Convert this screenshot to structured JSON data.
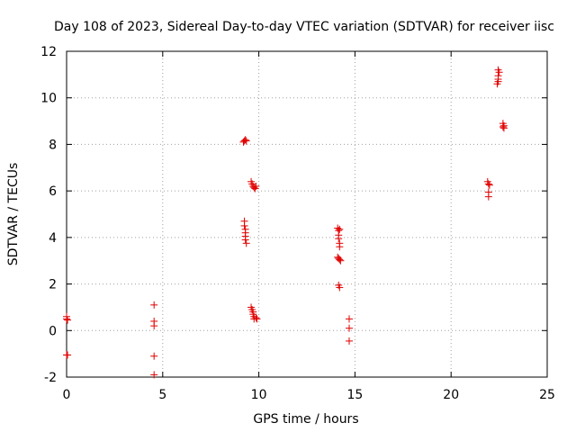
{
  "chart_data": {
    "type": "scatter",
    "title": "Day 108 of 2023, Sidereal Day-to-day VTEC variation (SDTVAR) for receiver iisc",
    "xlabel": "GPS time / hours",
    "ylabel": "SDTVAR / TECUs",
    "xlim": [
      0,
      25
    ],
    "ylim": [
      -2,
      12
    ],
    "grid": true,
    "xticks": [
      0,
      5,
      10,
      15,
      20,
      25
    ],
    "yticks": [
      -2,
      0,
      2,
      4,
      6,
      8,
      10,
      12
    ],
    "x_tick_labels": [
      "0",
      "5",
      "10",
      "15",
      "20",
      "25"
    ],
    "y_tick_labels": [
      "-2",
      "0",
      "2",
      "4",
      "6",
      "8",
      "10",
      "12"
    ],
    "marker": "+",
    "color": "#e00000",
    "series": [
      {
        "name": "SDTVAR",
        "points": [
          [
            0.0,
            0.6
          ],
          [
            0.0,
            0.5
          ],
          [
            0.05,
            0.45
          ],
          [
            0.0,
            -1.05
          ],
          [
            0.05,
            -1.05
          ],
          [
            4.55,
            1.1
          ],
          [
            4.55,
            0.4
          ],
          [
            4.55,
            0.2
          ],
          [
            4.55,
            -1.1
          ],
          [
            4.55,
            -1.9
          ],
          [
            9.2,
            8.1
          ],
          [
            9.25,
            8.15
          ],
          [
            9.3,
            8.2
          ],
          [
            9.35,
            8.15
          ],
          [
            9.25,
            4.7
          ],
          [
            9.25,
            4.5
          ],
          [
            9.3,
            4.35
          ],
          [
            9.3,
            4.2
          ],
          [
            9.3,
            4.05
          ],
          [
            9.3,
            3.9
          ],
          [
            9.35,
            3.75
          ],
          [
            9.6,
            6.4
          ],
          [
            9.65,
            6.3
          ],
          [
            9.7,
            6.2
          ],
          [
            9.75,
            6.15
          ],
          [
            9.8,
            6.1
          ],
          [
            9.85,
            6.2
          ],
          [
            9.6,
            1.0
          ],
          [
            9.65,
            0.9
          ],
          [
            9.7,
            0.8
          ],
          [
            9.7,
            0.7
          ],
          [
            9.75,
            0.6
          ],
          [
            9.75,
            0.5
          ],
          [
            9.85,
            0.55
          ],
          [
            9.9,
            0.5
          ],
          [
            14.1,
            4.4
          ],
          [
            14.15,
            4.3
          ],
          [
            14.2,
            4.35
          ],
          [
            14.15,
            4.1
          ],
          [
            14.15,
            3.95
          ],
          [
            14.2,
            3.75
          ],
          [
            14.2,
            3.6
          ],
          [
            14.1,
            3.15
          ],
          [
            14.15,
            3.1
          ],
          [
            14.2,
            3.05
          ],
          [
            14.25,
            3.0
          ],
          [
            14.15,
            1.95
          ],
          [
            14.2,
            1.85
          ],
          [
            14.7,
            0.5
          ],
          [
            14.7,
            0.1
          ],
          [
            14.7,
            -0.45
          ],
          [
            21.9,
            6.4
          ],
          [
            21.95,
            6.3
          ],
          [
            22.0,
            6.25
          ],
          [
            21.95,
            5.95
          ],
          [
            21.95,
            5.75
          ],
          [
            22.45,
            11.2
          ],
          [
            22.5,
            11.1
          ],
          [
            22.45,
            10.95
          ],
          [
            22.45,
            10.8
          ],
          [
            22.45,
            10.7
          ],
          [
            22.4,
            10.6
          ],
          [
            22.7,
            8.9
          ],
          [
            22.75,
            8.8
          ],
          [
            22.7,
            8.75
          ],
          [
            22.75,
            8.7
          ]
        ]
      }
    ]
  }
}
